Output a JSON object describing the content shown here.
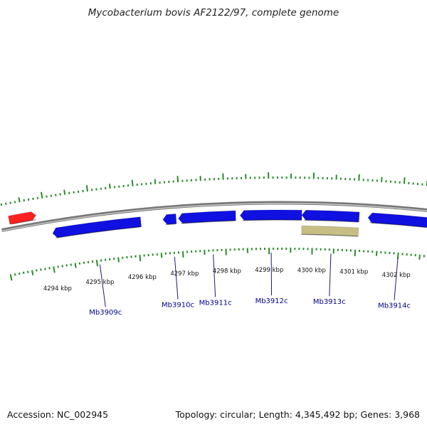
{
  "title": "Mycobacterium bovis AF2122/97, complete genome",
  "footer": {
    "accession": "Accession: NC_002945",
    "summary": "Topology: circular; Length: 4,345,492 bp; Genes: 3,968"
  },
  "colors": {
    "forward_feature": "#ff2020",
    "reverse_feature": "#1010e0",
    "other_feature": "#c8be84",
    "backbone": "#888888",
    "ticks": "#2a8a2a",
    "label": "#00008b",
    "leader": "#1a1a80"
  },
  "scale": {
    "unit": "kbp",
    "labels": [
      {
        "text": "4294 kbp",
        "kbp": 4294
      },
      {
        "text": "4295 kbp",
        "kbp": 4295
      },
      {
        "text": "4296 kbp",
        "kbp": 4296
      },
      {
        "text": "4297 kbp",
        "kbp": 4297
      },
      {
        "text": "4298 kbp",
        "kbp": 4298
      },
      {
        "text": "4299 kbp",
        "kbp": 4299
      },
      {
        "text": "4300 kbp",
        "kbp": 4300
      },
      {
        "text": "4301 kbp",
        "kbp": 4301
      },
      {
        "text": "4302 kbp",
        "kbp": 4302
      }
    ]
  },
  "features": [
    {
      "strand": "forward",
      "start_kbp": 4293.2,
      "end_kbp": 4293.8,
      "type": "gene"
    },
    {
      "strand": "reverse",
      "start_kbp": 4294.1,
      "end_kbp": 4296.1,
      "type": "gene"
    },
    {
      "strand": "reverse",
      "start_kbp": 4296.6,
      "end_kbp": 4296.9,
      "type": "gene"
    },
    {
      "strand": "reverse",
      "start_kbp": 4296.95,
      "end_kbp": 4298.25,
      "type": "gene"
    },
    {
      "strand": "reverse",
      "start_kbp": 4298.35,
      "end_kbp": 4299.75,
      "type": "gene"
    },
    {
      "strand": "reverse",
      "start_kbp": 4299.75,
      "end_kbp": 4301.05,
      "type": "gene"
    },
    {
      "strand": "reverse",
      "start_kbp": 4301.25,
      "end_kbp": 4302.75,
      "type": "gene"
    },
    {
      "strand": "reverse",
      "start_kbp": 4299.75,
      "end_kbp": 4301.05,
      "type": "other"
    }
  ],
  "gene_labels": [
    {
      "text": "Mb3909c",
      "kbp": 4295.06
    },
    {
      "text": "Mb3910c",
      "kbp": 4296.8
    },
    {
      "text": "Mb3911c",
      "kbp": 4297.7
    },
    {
      "text": "Mb3912c",
      "kbp": 4299.05
    },
    {
      "text": "Mb3913c",
      "kbp": 4300.44
    },
    {
      "text": "Mb3914c",
      "kbp": 4302.0
    }
  ]
}
